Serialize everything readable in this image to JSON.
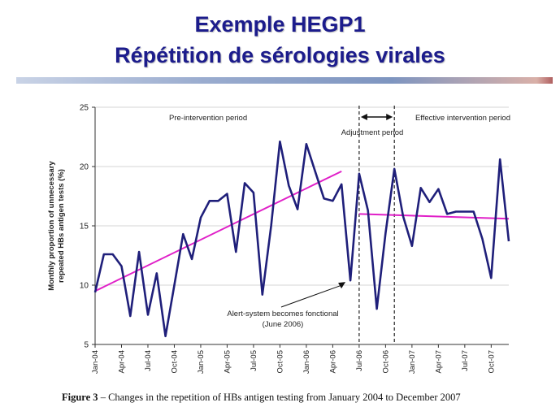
{
  "slide": {
    "title_line1": "Exemple HEGP1",
    "title_line2": "Répétition de sérologies virales",
    "title_color": "#1c1c8c"
  },
  "figure": {
    "caption_label": "Figure 3",
    "caption_text": " – Changes in the repetition of HBs antigen testing from January 2004 to December 2007"
  },
  "chart_data": {
    "type": "line",
    "ylabel_line1": "Monthly proportion of unnecessary",
    "ylabel_line2": "repeated HBs antigen tests (%)",
    "ylim": [
      5,
      25
    ],
    "yticks": [
      5,
      10,
      15,
      20,
      25
    ],
    "x": [
      "Jan-04",
      "Feb-04",
      "Mar-04",
      "Apr-04",
      "May-04",
      "Jun-04",
      "Jul-04",
      "Aug-04",
      "Sep-04",
      "Oct-04",
      "Nov-04",
      "Dec-04",
      "Jan-05",
      "Feb-05",
      "Mar-05",
      "Apr-05",
      "May-05",
      "Jun-05",
      "Jul-05",
      "Aug-05",
      "Sep-05",
      "Oct-05",
      "Nov-05",
      "Dec-05",
      "Jan-06",
      "Feb-06",
      "Mar-06",
      "Apr-06",
      "May-06",
      "Jun-06",
      "Jul-06",
      "Aug-06",
      "Sep-06",
      "Oct-06",
      "Nov-06",
      "Dec-06",
      "Jan-07",
      "Feb-07",
      "Mar-07",
      "Apr-07",
      "May-07",
      "Jun-07",
      "Jul-07",
      "Aug-07",
      "Sep-07",
      "Oct-07",
      "Nov-07",
      "Dec-07"
    ],
    "xtick_labels": [
      "Jan-04",
      "Apr-04",
      "Jul-04",
      "Oct-04",
      "Jan-05",
      "Apr-05",
      "Jul-05",
      "Oct-05",
      "Jan-06",
      "Apr-06",
      "Jul-06",
      "Oct-06",
      "Jan-07",
      "Apr-07",
      "Jul-07",
      "Oct-07"
    ],
    "series": [
      {
        "color": "#1f1f7a",
        "values": [
          9.4,
          12.6,
          12.6,
          11.6,
          7.4,
          12.8,
          7.5,
          11.0,
          5.7,
          10.0,
          14.3,
          12.2,
          15.7,
          17.1,
          17.1,
          17.7,
          12.8,
          18.6,
          17.8,
          9.2,
          15.0,
          22.1,
          18.4,
          16.4,
          21.9,
          19.6,
          17.3,
          17.1,
          18.5,
          10.4,
          19.4,
          16.3,
          8.0,
          14.4,
          19.8,
          15.8,
          13.3,
          18.2,
          17.0,
          18.1,
          16.0,
          16.2,
          16.2,
          16.2,
          13.9,
          10.6,
          20.6,
          13.7
        ]
      }
    ],
    "trend_lines": [
      {
        "color": "#e020c8",
        "from": {
          "x": "Jan-04",
          "y": 9.5
        },
        "to": {
          "x": "May-06",
          "y": 19.6
        }
      },
      {
        "color": "#e020c8",
        "from": {
          "x": "Jul-06",
          "y": 16.0
        },
        "to": {
          "x": "Dec-07",
          "y": 15.6
        }
      }
    ],
    "period_markers": [
      {
        "x": "Jul-06",
        "style": "dashed"
      },
      {
        "x": "Nov-06",
        "style": "dashed"
      }
    ],
    "annotations": {
      "pre": "Pre-intervention period",
      "adjustment": "Adjustment period",
      "effective": "Effective intervention period",
      "alert_line1": "Alert-system becomes fonctional",
      "alert_line2": "(June 2006)"
    },
    "grid": true
  }
}
